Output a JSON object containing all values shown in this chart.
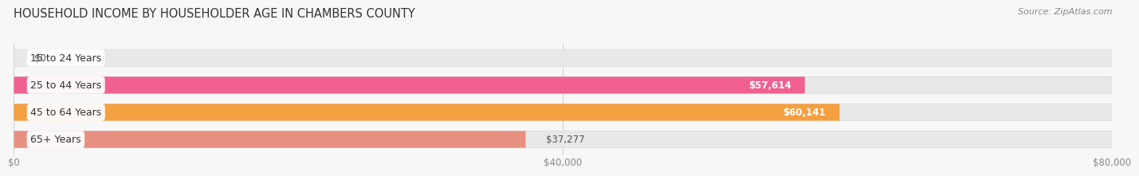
{
  "title": "HOUSEHOLD INCOME BY HOUSEHOLDER AGE IN CHAMBERS COUNTY",
  "source": "Source: ZipAtlas.com",
  "categories": [
    "15 to 24 Years",
    "25 to 44 Years",
    "45 to 64 Years",
    "65+ Years"
  ],
  "values": [
    0,
    57614,
    60141,
    37277
  ],
  "bar_colors": [
    "#b0b8e0",
    "#f06090",
    "#f5a040",
    "#e89080"
  ],
  "value_labels": [
    "$0",
    "$57,614",
    "$60,141",
    "$37,277"
  ],
  "value_label_inside": [
    false,
    true,
    true,
    false
  ],
  "xlim": [
    0,
    80000
  ],
  "xticks": [
    0,
    40000,
    80000
  ],
  "xtick_labels": [
    "$0",
    "$40,000",
    "$80,000"
  ],
  "background_color": "#f7f7f7",
  "bar_background_color": "#e8e8e8",
  "bar_bg_stroke_color": "#d8d8d8",
  "title_fontsize": 10.5,
  "source_fontsize": 8,
  "bar_height": 0.62,
  "cat_label_fontsize": 9,
  "val_label_fontsize": 8.5
}
